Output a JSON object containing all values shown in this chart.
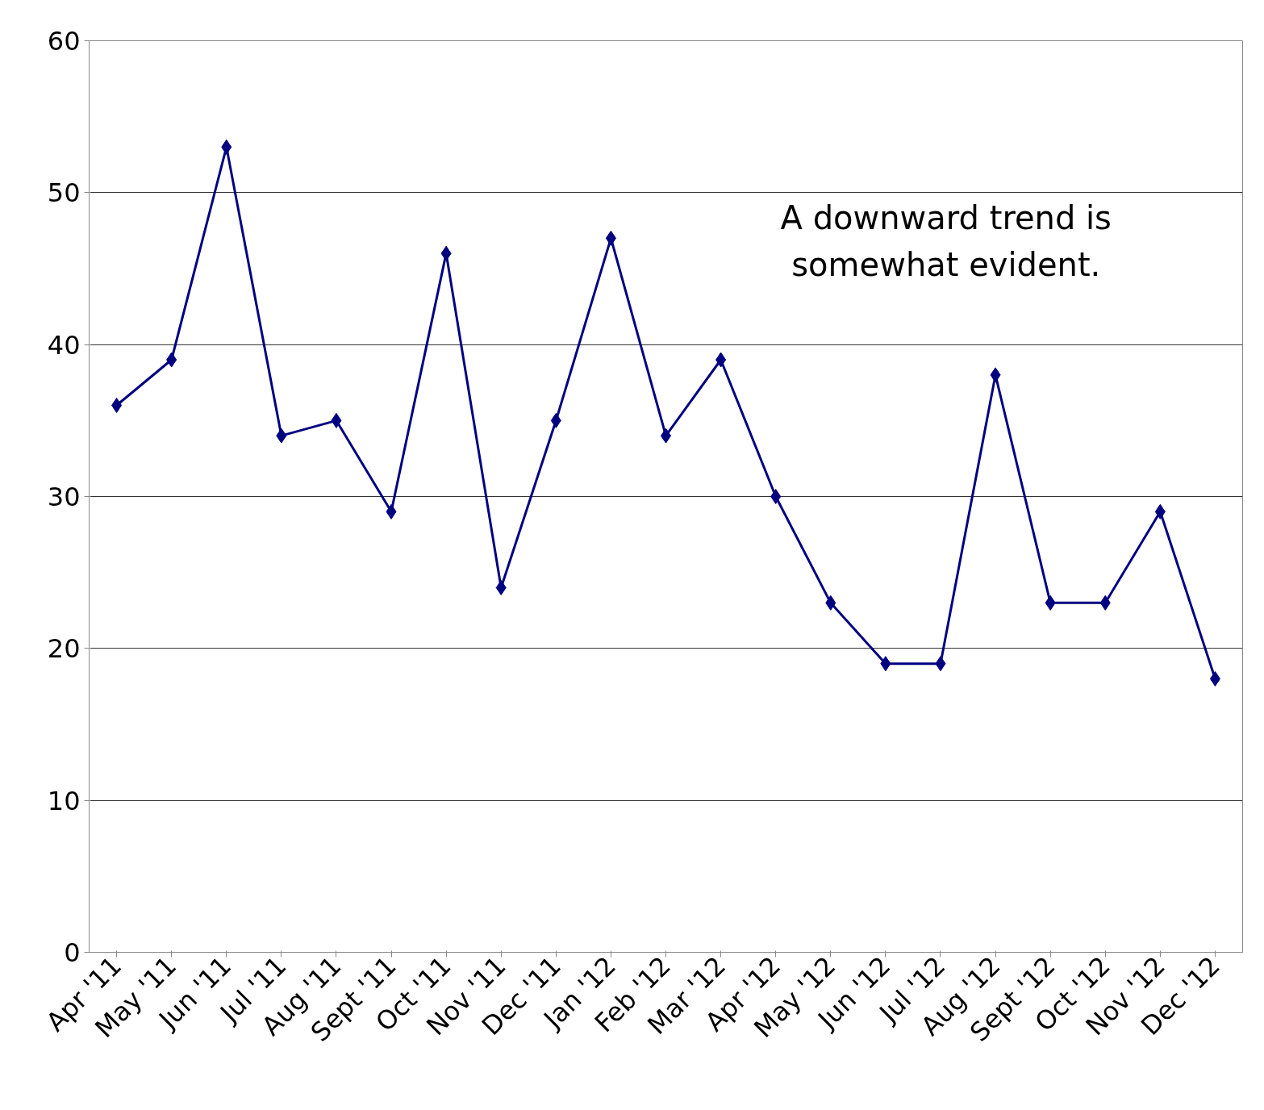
{
  "chart_data": {
    "type": "line",
    "categories": [
      "Apr '11",
      "May '11",
      "Jun '11",
      "Jul '11",
      "Aug '11",
      "Sept '11",
      "Oct '11",
      "Nov '11",
      "Dec '11",
      "Jan '12",
      "Feb '12",
      "Mar '12",
      "Apr '12",
      "May '12",
      "Jun '12",
      "Jul '12",
      "Aug '12",
      "Sept '12",
      "Oct '12",
      "Nov '12",
      "Dec '12"
    ],
    "series": [
      {
        "color": "#000080",
        "values": [
          36,
          39,
          53,
          34,
          35,
          29,
          46,
          24,
          35,
          47,
          34,
          39,
          30,
          23,
          19,
          19,
          38,
          23,
          23,
          29,
          18
        ]
      }
    ],
    "ylim": [
      0,
      60
    ],
    "yticks": [
      0,
      10,
      20,
      30,
      40,
      50,
      60
    ],
    "grid": "y",
    "marker": "diamond",
    "line_style": "solid",
    "annotations": [
      "A downward trend is\nsomewhat evident."
    ]
  }
}
